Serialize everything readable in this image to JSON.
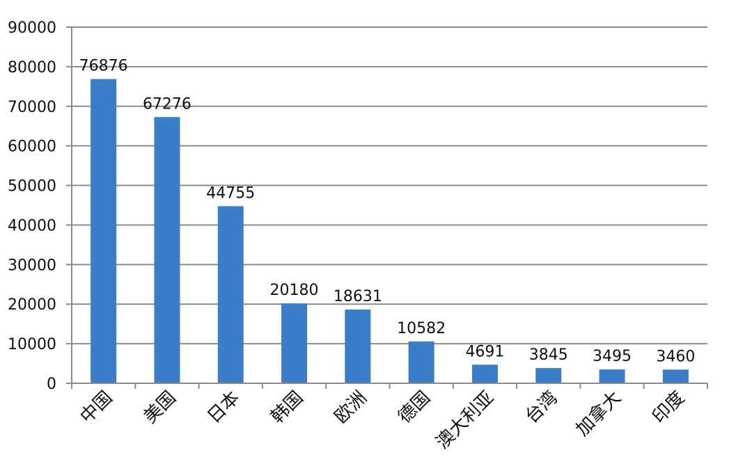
{
  "chart_data": {
    "type": "bar",
    "categories": [
      "中国",
      "美国",
      "日本",
      "韩国",
      "欧洲",
      "德国",
      "澳大利亚",
      "台湾",
      "加拿大",
      "印度"
    ],
    "values": [
      76876,
      67276,
      44755,
      20180,
      18631,
      10582,
      4691,
      3845,
      3495,
      3460
    ],
    "data_labels": [
      "76876",
      "67276",
      "44755",
      "20180",
      "18631",
      "10582",
      "4691",
      "3845",
      "3495",
      "3460"
    ],
    "yticks": [
      0,
      10000,
      20000,
      30000,
      40000,
      50000,
      60000,
      70000,
      80000,
      90000
    ],
    "ytick_labels": [
      "0",
      "10000",
      "20000",
      "30000",
      "40000",
      "50000",
      "60000",
      "70000",
      "80000",
      "90000"
    ],
    "ylim": [
      0,
      90000
    ],
    "title": "",
    "xlabel": "",
    "ylabel": "",
    "grid": true,
    "legend": "none",
    "colors": {
      "bar": "#3A7DC9",
      "grid": "#8c8c8c",
      "axis": "#8c8c8c",
      "text": "#111111"
    }
  }
}
